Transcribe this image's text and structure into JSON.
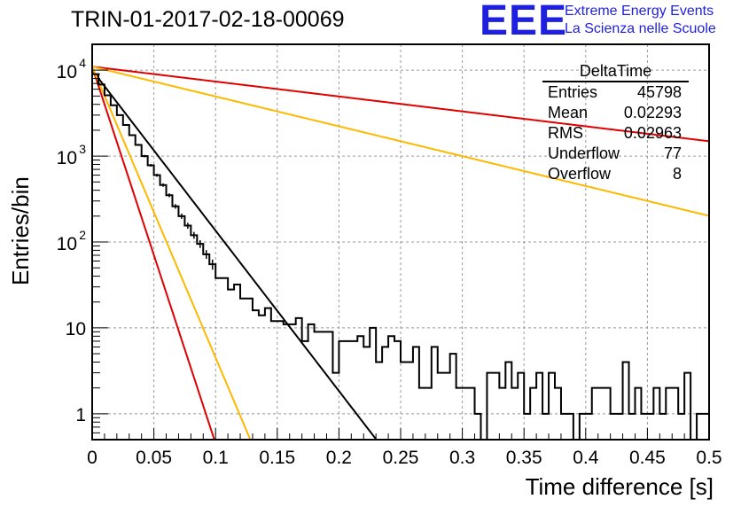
{
  "title": "TRIN-01-2017-02-18-00069",
  "logo": {
    "mark": "EEE",
    "line1": "Extreme Energy Events",
    "line2": "La Scienza nelle Scuole",
    "color": "#1f1fe0"
  },
  "stats": {
    "title": "DeltaTime",
    "rows": [
      {
        "label": "Entries",
        "value": "45798"
      },
      {
        "label": "Mean",
        "value": "0.02293"
      },
      {
        "label": "RMS",
        "value": "0.02963"
      },
      {
        "label": "Underflow",
        "value": "77"
      },
      {
        "label": "Overflow",
        "value": "8"
      }
    ]
  },
  "chart_data": {
    "type": "line",
    "title": "TRIN-01-2017-02-18-00069",
    "xlabel": "Time difference [s]",
    "ylabel": "Entries/bin",
    "xlim": [
      0,
      0.5
    ],
    "ylim": [
      0.5,
      20000
    ],
    "log_y": true,
    "grid": true,
    "x_ticks": [
      "0",
      "0.05",
      "0.1",
      "0.15",
      "0.2",
      "0.25",
      "0.3",
      "0.35",
      "0.4",
      "0.45",
      "0.5"
    ],
    "y_ticks": [
      {
        "value": 1,
        "label": "1"
      },
      {
        "value": 10,
        "label": "10"
      },
      {
        "value": 100,
        "label": "10^2"
      },
      {
        "value": 1000,
        "label": "10^3"
      },
      {
        "value": 10000,
        "label": "10^4"
      }
    ],
    "histogram": {
      "bin_width": 0.005,
      "color": "#000000",
      "values": [
        9000,
        6800,
        5100,
        3900,
        3000,
        2300,
        1750,
        1350,
        1000,
        780,
        600,
        460,
        350,
        260,
        200,
        155,
        120,
        95,
        72,
        55,
        38,
        38,
        28,
        32,
        22,
        22,
        16,
        14,
        17,
        12,
        12,
        11,
        11,
        13,
        7,
        11,
        9,
        9,
        9,
        3,
        7,
        7,
        7,
        8,
        6,
        10,
        4,
        6,
        8,
        7,
        4,
        4,
        6,
        2,
        2,
        6,
        3,
        3,
        5,
        2,
        2,
        2,
        1,
        0,
        3,
        3,
        2,
        4,
        2,
        3,
        1,
        2,
        3,
        1,
        3,
        2,
        1,
        1,
        0,
        1,
        1,
        2,
        2,
        2,
        1,
        1,
        4,
        1,
        2,
        1,
        1,
        2,
        1,
        2,
        2,
        1,
        3,
        0,
        1,
        1
      ]
    },
    "fits": [
      {
        "color": "#000000",
        "A": 10000,
        "slope": -43
      },
      {
        "color": "#e00000",
        "A": 11000,
        "slope": -4
      },
      {
        "color": "#ffb800",
        "A": 11000,
        "slope": -8
      },
      {
        "color": "#e00000",
        "A": 11000,
        "slope": -101
      },
      {
        "color": "#ffb800",
        "A": 11000,
        "slope": -78
      }
    ]
  }
}
